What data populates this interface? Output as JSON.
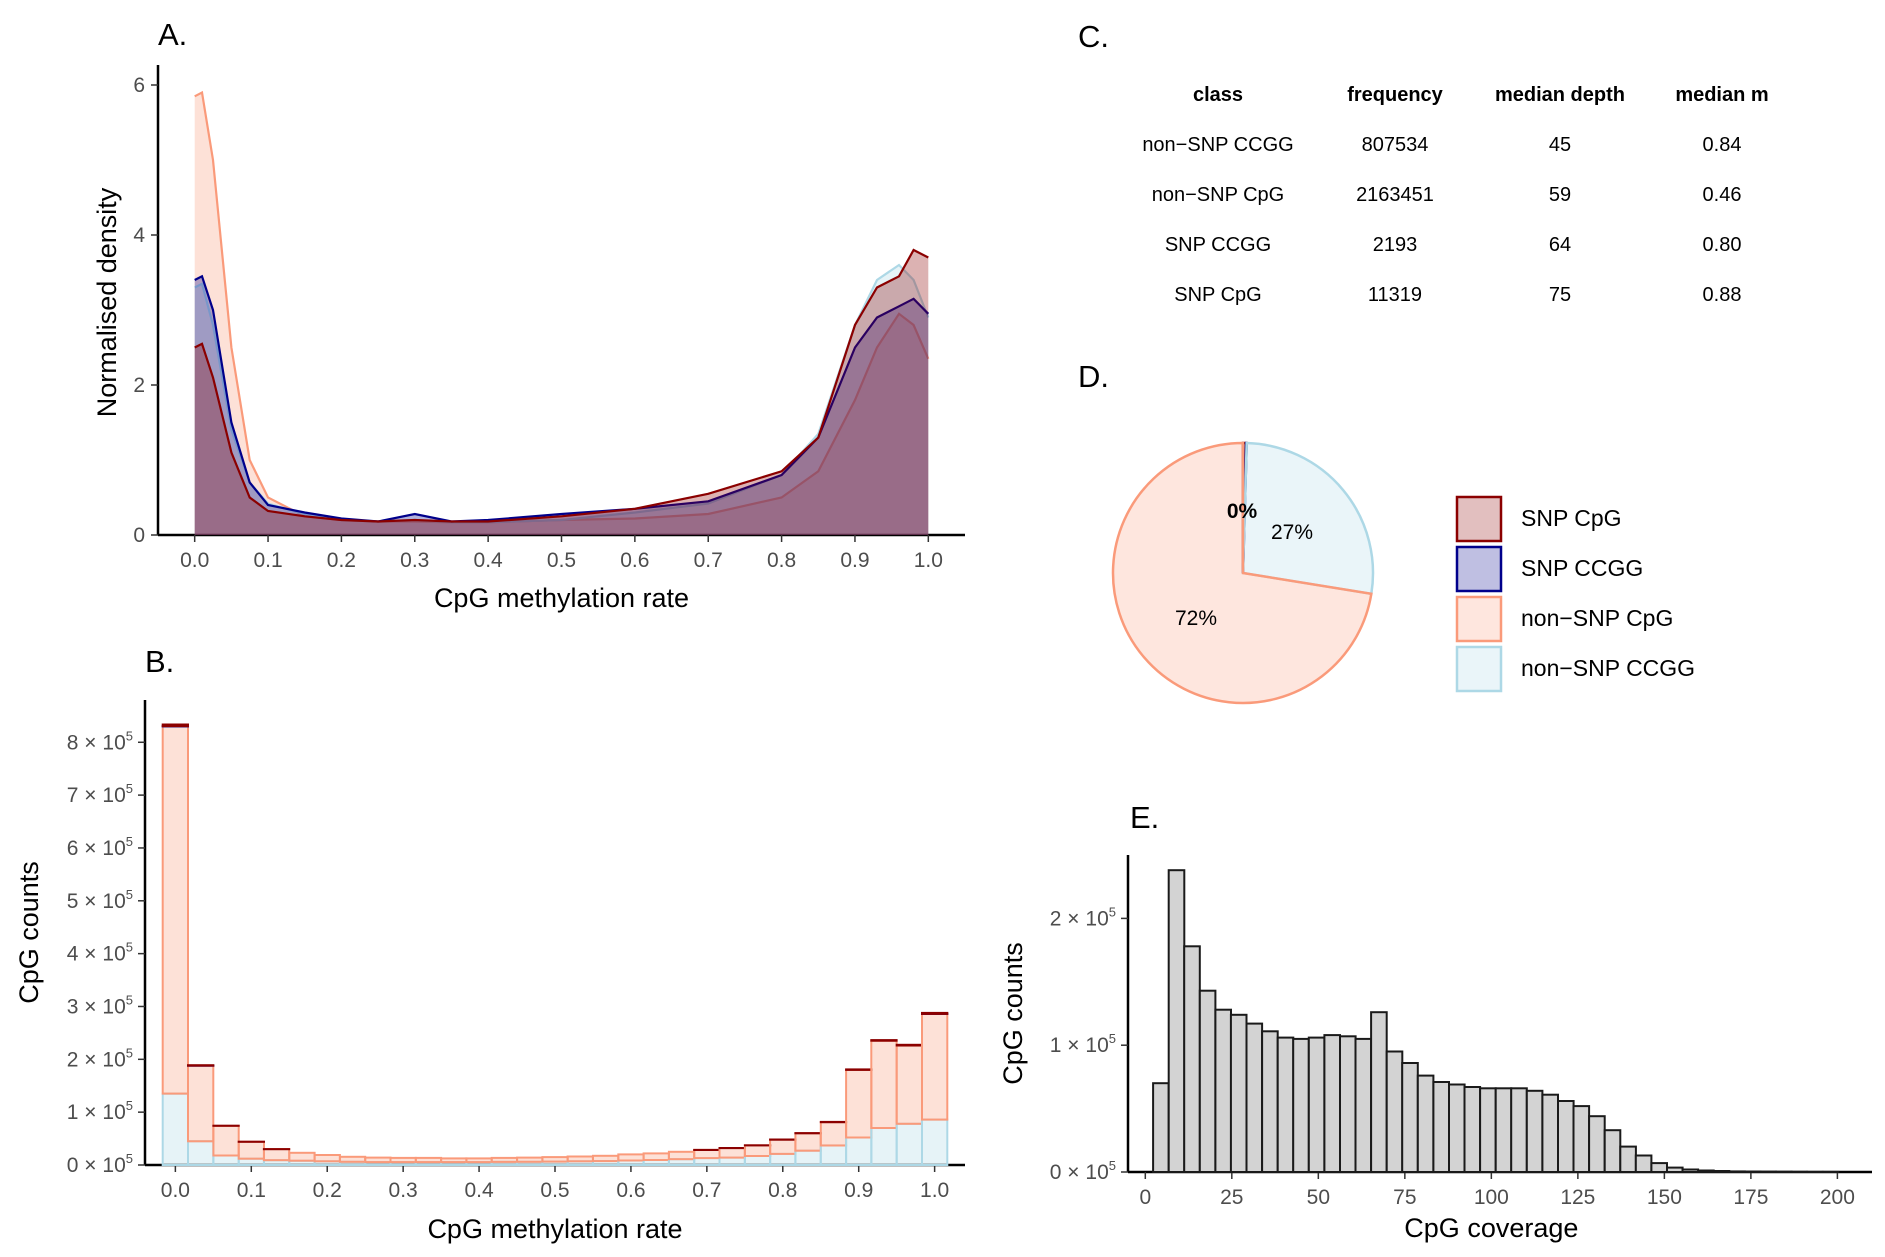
{
  "panels": {
    "a": "A.",
    "b": "B.",
    "c": "C.",
    "d": "D.",
    "e": "E."
  },
  "colors": {
    "snp_cpg": "#8b0000",
    "snp_ccgg": "#00008b",
    "nonsnp_cpg": "#fa9a7a",
    "nonsnp_ccgg": "#add8e6",
    "hist_fill": "#d3d3d3",
    "hist_line": "#1a1a1a"
  },
  "chart_data": [
    {
      "panel": "A.",
      "type": "area",
      "xlabel": "CpG methylation rate",
      "ylabel": "Normalised density",
      "xlim": [
        -0.05,
        1.05
      ],
      "ylim": [
        0,
        6.2
      ],
      "xticks": [
        "0.0",
        "0.1",
        "0.2",
        "0.3",
        "0.4",
        "0.5",
        "0.6",
        "0.7",
        "0.8",
        "0.9",
        "1.0"
      ],
      "yticks": [
        "0",
        "2",
        "4",
        "6"
      ],
      "x": [
        0.0,
        0.01,
        0.025,
        0.05,
        0.075,
        0.1,
        0.15,
        0.2,
        0.25,
        0.3,
        0.35,
        0.4,
        0.5,
        0.6,
        0.7,
        0.8,
        0.85,
        0.9,
        0.93,
        0.96,
        0.98,
        1.0
      ],
      "series": [
        {
          "key": "nonsnp_cpg",
          "values": [
            5.85,
            5.9,
            5.0,
            2.5,
            1.0,
            0.5,
            0.25,
            0.2,
            0.18,
            0.18,
            0.17,
            0.17,
            0.2,
            0.22,
            0.28,
            0.5,
            0.85,
            1.8,
            2.5,
            2.95,
            2.8,
            2.35
          ]
        },
        {
          "key": "nonsnp_ccgg",
          "values": [
            3.3,
            3.35,
            2.8,
            1.4,
            0.7,
            0.42,
            0.28,
            0.2,
            0.18,
            0.2,
            0.17,
            0.17,
            0.2,
            0.3,
            0.42,
            0.8,
            1.35,
            2.8,
            3.4,
            3.6,
            3.4,
            2.9
          ]
        },
        {
          "key": "snp_ccgg",
          "values": [
            3.4,
            3.45,
            3.0,
            1.5,
            0.7,
            0.4,
            0.3,
            0.22,
            0.18,
            0.28,
            0.18,
            0.2,
            0.28,
            0.35,
            0.45,
            0.8,
            1.3,
            2.5,
            2.9,
            3.05,
            3.15,
            2.95
          ]
        },
        {
          "key": "snp_cpg",
          "values": [
            2.5,
            2.55,
            2.1,
            1.1,
            0.5,
            0.32,
            0.25,
            0.2,
            0.18,
            0.2,
            0.18,
            0.18,
            0.25,
            0.35,
            0.55,
            0.85,
            1.3,
            2.8,
            3.3,
            3.45,
            3.8,
            3.7
          ]
        }
      ]
    },
    {
      "panel": "B.",
      "type": "bar",
      "stacked": true,
      "xlabel": "CpG methylation rate",
      "ylabel": "CpG counts",
      "xlim": [
        -0.04,
        1.04
      ],
      "ylim": [
        0,
        880000
      ],
      "xticks": [
        "0.0",
        "0.1",
        "0.2",
        "0.3",
        "0.4",
        "0.5",
        "0.6",
        "0.7",
        "0.8",
        "0.9",
        "1.0"
      ],
      "ytick_mantissa": [
        "0",
        "1",
        "2",
        "3",
        "4",
        "5",
        "6",
        "7",
        "8"
      ],
      "ytick_base": "× 10",
      "ytick_exp": "5",
      "bin_width": 0.0333,
      "x": [
        0.0,
        0.0333,
        0.0667,
        0.1,
        0.1333,
        0.1667,
        0.2,
        0.2333,
        0.2667,
        0.3,
        0.3333,
        0.3667,
        0.4,
        0.4333,
        0.4667,
        0.5,
        0.5333,
        0.5667,
        0.6,
        0.6333,
        0.6667,
        0.7,
        0.7333,
        0.7667,
        0.8,
        0.8333,
        0.8667,
        0.9,
        0.9333,
        0.9667,
        1.0
      ],
      "series": [
        {
          "key": "nonsnp_ccgg",
          "values": [
            135000,
            45000,
            18000,
            12000,
            9000,
            8000,
            7000,
            6000,
            5500,
            5500,
            5500,
            5500,
            5500,
            6000,
            6000,
            6500,
            7000,
            7500,
            8500,
            9500,
            11000,
            13000,
            14000,
            17000,
            21000,
            27000,
            37000,
            52000,
            70000,
            78000,
            86000
          ]
        },
        {
          "key": "nonsnp_cpg",
          "values": [
            695000,
            143000,
            56000,
            32000,
            21000,
            15000,
            12000,
            9500,
            8500,
            8000,
            8000,
            7000,
            7000,
            7500,
            8000,
            8500,
            9000,
            10000,
            11500,
            12500,
            14000,
            15500,
            18000,
            20000,
            27000,
            33000,
            44000,
            128000,
            165000,
            148000,
            200000
          ]
        },
        {
          "key": "snp_ccgg",
          "values": [
            600,
            150,
            60,
            30,
            20,
            15,
            12,
            10,
            10,
            10,
            10,
            10,
            10,
            10,
            10,
            10,
            10,
            10,
            10,
            10,
            10,
            12,
            15,
            20,
            25,
            30,
            40,
            60,
            80,
            90,
            100
          ]
        },
        {
          "key": "snp_cpg",
          "values": [
            3000,
            700,
            250,
            150,
            100,
            80,
            60,
            50,
            50,
            50,
            50,
            50,
            50,
            50,
            50,
            50,
            50,
            50,
            60,
            70,
            80,
            100,
            150,
            200,
            300,
            400,
            600,
            900,
            1200,
            1400,
            1800
          ]
        }
      ]
    },
    {
      "panel": "C.",
      "type": "table",
      "columns": [
        "class",
        "frequency",
        "median depth",
        "median m"
      ],
      "rows": [
        [
          "non−SNP CCGG",
          "807534",
          "45",
          "0.84"
        ],
        [
          "non−SNP CpG",
          "2163451",
          "59",
          "0.46"
        ],
        [
          "SNP CCGG",
          "2193",
          "64",
          "0.80"
        ],
        [
          "SNP CpG",
          "11319",
          "75",
          "0.88"
        ]
      ]
    },
    {
      "panel": "D.",
      "type": "pie",
      "slices": [
        {
          "key": "snp_cpg",
          "value": 0.0038,
          "label": ""
        },
        {
          "key": "snp_ccgg",
          "value": 0.0007,
          "label": "0%"
        },
        {
          "key": "nonsnp_ccgg",
          "value": 0.2711,
          "label": "27%"
        },
        {
          "key": "nonsnp_cpg",
          "value": 0.7244,
          "label": "72%"
        }
      ],
      "legend": [
        {
          "key": "snp_cpg",
          "label": "SNP CpG"
        },
        {
          "key": "snp_ccgg",
          "label": "SNP CCGG"
        },
        {
          "key": "nonsnp_cpg",
          "label": "non−SNP CpG"
        },
        {
          "key": "nonsnp_ccgg",
          "label": "non−SNP CCGG"
        }
      ]
    },
    {
      "panel": "E.",
      "type": "bar",
      "histogram": true,
      "xlabel": "CpG coverage",
      "ylabel": "CpG counts",
      "xlim": [
        -5,
        210
      ],
      "ylim": [
        0,
        250000
      ],
      "xticks": [
        "0",
        "25",
        "50",
        "75",
        "100",
        "125",
        "150",
        "175",
        "200"
      ],
      "ytick_mantissa": [
        "0",
        "1",
        "2"
      ],
      "ytick_base": "× 10",
      "ytick_exp": "5",
      "bin_width": 4.5,
      "x": [
        4.5,
        9,
        13.5,
        18,
        22.5,
        27,
        31.5,
        36,
        40.5,
        45,
        49.5,
        54,
        58.5,
        63,
        67.5,
        72,
        76.5,
        81,
        85.5,
        90,
        94.5,
        99,
        103.5,
        108,
        112.5,
        117,
        121.5,
        126,
        130.5,
        135,
        139.5,
        144,
        148.5,
        153,
        157.5,
        162,
        166.5,
        171,
        175.5,
        180,
        184.5,
        189,
        193.5,
        198
      ],
      "values": [
        70000,
        238000,
        178000,
        143000,
        128000,
        124000,
        117000,
        111000,
        106000,
        105000,
        106000,
        108000,
        107000,
        105000,
        126000,
        95000,
        86000,
        76000,
        71000,
        69000,
        67000,
        66000,
        66000,
        66000,
        64000,
        61000,
        56000,
        52000,
        44000,
        33000,
        20000,
        13000,
        7000,
        3500,
        2000,
        1200,
        800,
        500,
        400,
        300,
        200,
        150,
        100,
        80
      ]
    }
  ]
}
